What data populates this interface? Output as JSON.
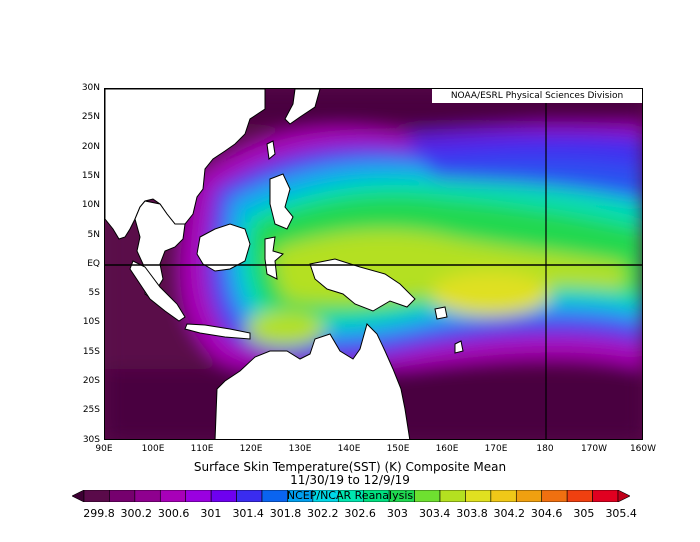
{
  "map": {
    "credit": "NOAA/ESRL Physical Sciences Division",
    "lat_labels": [
      "30N",
      "25N",
      "20N",
      "15N",
      "10N",
      "5N",
      "EQ",
      "5S",
      "10S",
      "15S",
      "20S",
      "25S",
      "30S"
    ],
    "lon_labels": [
      "90E",
      "100E",
      "110E",
      "120E",
      "130E",
      "140E",
      "150E",
      "160E",
      "170E",
      "180",
      "170W",
      "160W"
    ],
    "title_line1": "Surface Skin Temperature(SST) (K) Composite Mean",
    "title_line2": "11/30/19  to 12/9/19"
  },
  "colorbar": {
    "center_text": "NCEP/NCAR Reanalysis",
    "labels": [
      "299.8",
      "300.2",
      "300.6",
      "301",
      "301.4",
      "301.8",
      "302.2",
      "302.6",
      "303",
      "303.4",
      "303.8",
      "304.2",
      "304.6",
      "305",
      "305.4"
    ],
    "colors": [
      "#3d0033",
      "#5a0a4a",
      "#76006e",
      "#8f008f",
      "#a800b8",
      "#9a00e0",
      "#6e00f0",
      "#3a2cf0",
      "#0a64f0",
      "#00a0f0",
      "#00d8e8",
      "#00e6b0",
      "#00e080",
      "#20d850",
      "#6ee030",
      "#b4e020",
      "#e0e020",
      "#f0c818",
      "#f0a010",
      "#f07010",
      "#f04010",
      "#e00020",
      "#c0001a"
    ]
  }
}
